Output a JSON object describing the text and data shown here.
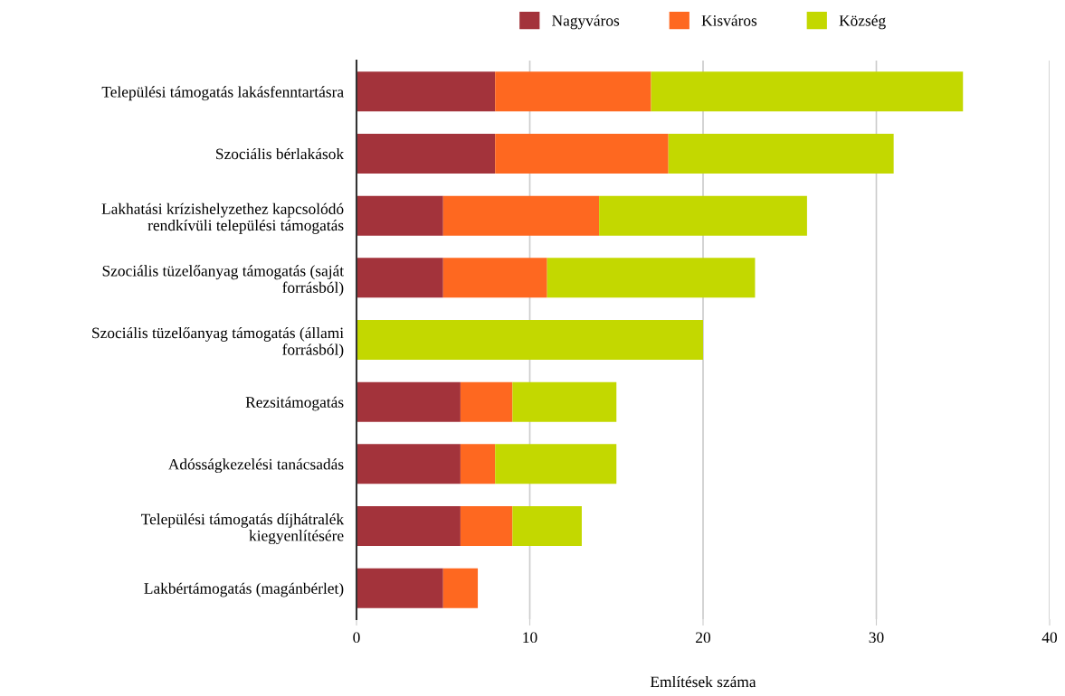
{
  "chart_data": {
    "type": "bar",
    "orientation": "horizontal",
    "stacked": true,
    "categories": [
      "Települési támogatás lakásfenntartásra",
      "Szociális bérlakások",
      "Lakhatási krízishelyzethez kapcsolódó\nrendkívüli települési támogatás",
      "Szociális tüzelőanyag támogatás (saját\nforrásból)",
      "Szociális tüzelőanyag támogatás (állami\nforrásból)",
      "Rezsitámogatás",
      "Adósságkezelési tanácsadás",
      "Települési támogatás díjhátralék\nkiegyenlítésére",
      "Lakbértámogatás (magánbérlet)"
    ],
    "series": [
      {
        "name": "Nagyváros",
        "color": "#a3333b",
        "values": [
          8,
          8,
          5,
          5,
          null,
          6,
          6,
          6,
          5
        ]
      },
      {
        "name": "Kisváros",
        "color": "#fe6820",
        "values": [
          9,
          10,
          9,
          6,
          null,
          3,
          2,
          3,
          2
        ]
      },
      {
        "name": "Község",
        "color": "#c3d800",
        "values": [
          18,
          13,
          12,
          12,
          20,
          6,
          7,
          4,
          null
        ]
      }
    ],
    "xlabel": "Említések száma",
    "xlim": [
      0,
      40
    ],
    "xticks": [
      0,
      10,
      20,
      30,
      40
    ],
    "grid": "x",
    "legend": "top"
  }
}
